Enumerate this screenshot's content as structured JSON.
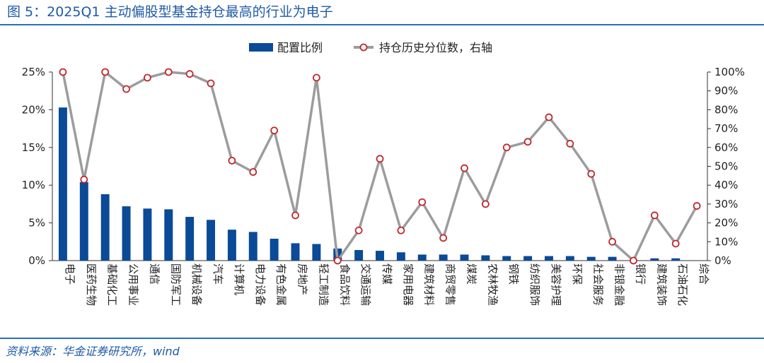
{
  "header": {
    "title": "图 5：2025Q1 主动偏股型基金持仓最高的行业为电子"
  },
  "footer": {
    "source": "资料来源：华金证券研究所，wind"
  },
  "colors": {
    "bar": "#0a4a97",
    "line": "#9c9c9c",
    "marker_edge": "#c0282d",
    "title": "#1f5aa6"
  },
  "chart_data": {
    "type": "bar",
    "title": "",
    "legend": {
      "position": "top-center",
      "entries": [
        "配置比例",
        "持仓历史分位数，右轴"
      ]
    },
    "categories": [
      "电子",
      "医药生物",
      "基础化工",
      "公用事业",
      "通信",
      "国防军工",
      "机械设备",
      "汽车",
      "计算机",
      "电力设备",
      "有色金属",
      "房地产",
      "轻工制造",
      "食品饮料",
      "交通运输",
      "传媒",
      "家用电器",
      "建筑材料",
      "商贸零售",
      "煤炭",
      "农林牧渔",
      "钢铁",
      "纺织服饰",
      "美容护理",
      "环保",
      "社会服务",
      "非银金融",
      "银行",
      "建筑装饰",
      "石油石化",
      "综合"
    ],
    "left_axis": {
      "ylim": [
        0,
        25
      ],
      "ticks": [
        "0%",
        "5%",
        "10%",
        "15%",
        "20%",
        "25%"
      ]
    },
    "right_axis": {
      "ylim": [
        0,
        100
      ],
      "ticks": [
        "0%",
        "10%",
        "20%",
        "30%",
        "40%",
        "50%",
        "60%",
        "70%",
        "80%",
        "90%",
        "100%"
      ]
    },
    "series": [
      {
        "name": "配置比例",
        "type": "bar",
        "axis": "left",
        "values": [
          20.3,
          10.4,
          8.8,
          7.2,
          6.9,
          6.8,
          5.8,
          5.4,
          4.1,
          3.8,
          2.9,
          2.3,
          2.2,
          1.6,
          1.4,
          1.3,
          1.1,
          0.8,
          0.8,
          0.8,
          0.7,
          0.6,
          0.6,
          0.6,
          0.6,
          0.5,
          0.5,
          0.0,
          0.3,
          0.3,
          0.0
        ]
      },
      {
        "name": "持仓历史分位数，右轴",
        "type": "line",
        "axis": "right",
        "values": [
          100,
          43,
          100,
          91,
          97,
          100,
          99,
          94,
          53,
          47,
          69,
          24,
          97,
          0,
          16,
          54,
          16,
          31,
          12,
          49,
          30,
          60,
          63,
          76,
          62,
          46,
          10,
          0,
          24,
          9,
          29
        ]
      }
    ]
  }
}
